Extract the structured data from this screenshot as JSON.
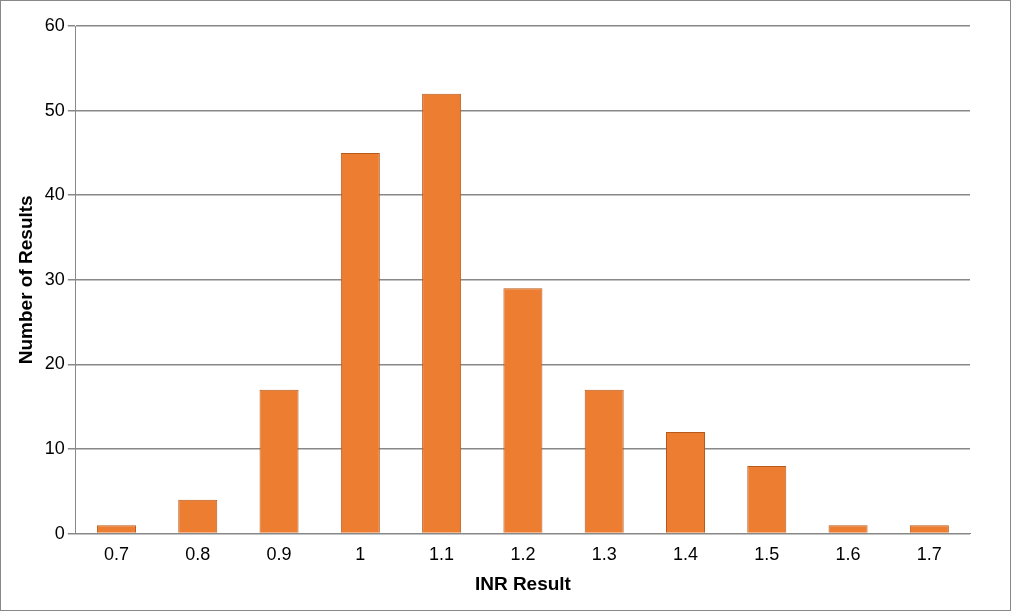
{
  "chart_data": {
    "type": "bar",
    "x_label": "INR Result",
    "y_label": "Number of Results",
    "categories": [
      "0.7",
      "0.8",
      "0.9",
      "1",
      "1.1",
      "1.2",
      "1.3",
      "1.4",
      "1.5",
      "1.6",
      "1.7"
    ],
    "values": [
      1,
      4,
      17,
      45,
      52,
      29,
      17,
      12,
      8,
      1,
      1
    ],
    "color": "#ed7d31",
    "ylim": [
      0,
      60
    ],
    "yticks": [
      0,
      10,
      20,
      30,
      40,
      50,
      60
    ],
    "grid": true
  }
}
